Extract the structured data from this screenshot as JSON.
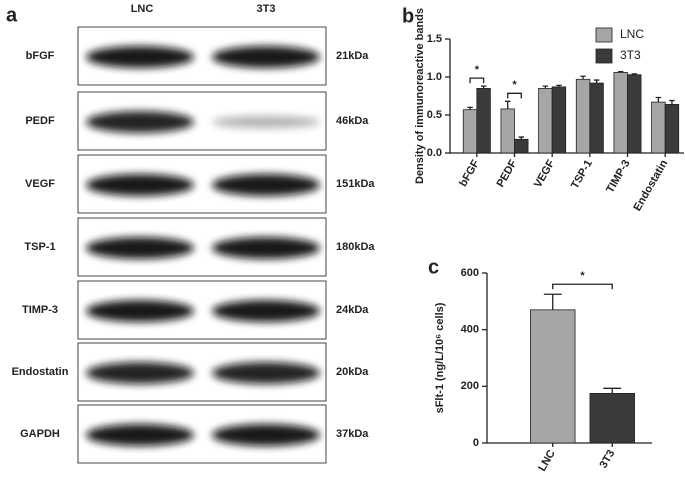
{
  "blot": {
    "panel": "a",
    "lanes": [
      "LNC",
      "3T3"
    ],
    "proteins": [
      "bFGF",
      "PEDF",
      "VEGF",
      "TSP-1",
      "TIMP-3",
      "Endostatin",
      "GAPDH"
    ],
    "sizes": [
      "21kDa",
      "46kDa",
      "151kDa",
      "180kDa",
      "24kDa",
      "20kDa",
      "37kDa"
    ]
  },
  "chart_data": [
    {
      "panel": "b",
      "type": "bar",
      "ylabel": "Density of immunoreactive bands",
      "categories": [
        "bFGF",
        "PEDF",
        "VEGF",
        "TSP-1",
        "TIMP-3",
        "Endostatin"
      ],
      "series": [
        {
          "name": "LNC",
          "color": "#a6a6a6",
          "values": [
            0.57,
            0.58,
            0.85,
            0.97,
            1.06,
            0.67
          ],
          "errors": [
            0.03,
            0.1,
            0.03,
            0.04,
            0.01,
            0.06
          ]
        },
        {
          "name": "3T3",
          "color": "#3a3a3a",
          "values": [
            0.85,
            0.18,
            0.87,
            0.92,
            1.03,
            0.64
          ],
          "errors": [
            0.03,
            0.03,
            0.02,
            0.04,
            0.01,
            0.05
          ]
        }
      ],
      "ylim": [
        0,
        1.5
      ],
      "yticks": [
        {
          "value": 0,
          "label": "0.0"
        },
        0.5,
        {
          "value": 1,
          "label": "1.0"
        },
        1.5
      ],
      "legend": "upper right",
      "annotations": [
        "*",
        "*"
      ]
    },
    {
      "panel": "c",
      "type": "bar",
      "ylabel": "sFlt-1 (ng/L/10⁶ cells)",
      "categories": [
        "LNC",
        "3T3"
      ],
      "values": [
        470,
        175
      ],
      "errors": [
        55,
        18
      ],
      "colors": [
        "#a6a6a6",
        "#3a3a3a"
      ],
      "ylim": [
        0,
        600
      ],
      "yticks": [
        0,
        200,
        400,
        600
      ],
      "annotations": [
        "*"
      ]
    }
  ]
}
